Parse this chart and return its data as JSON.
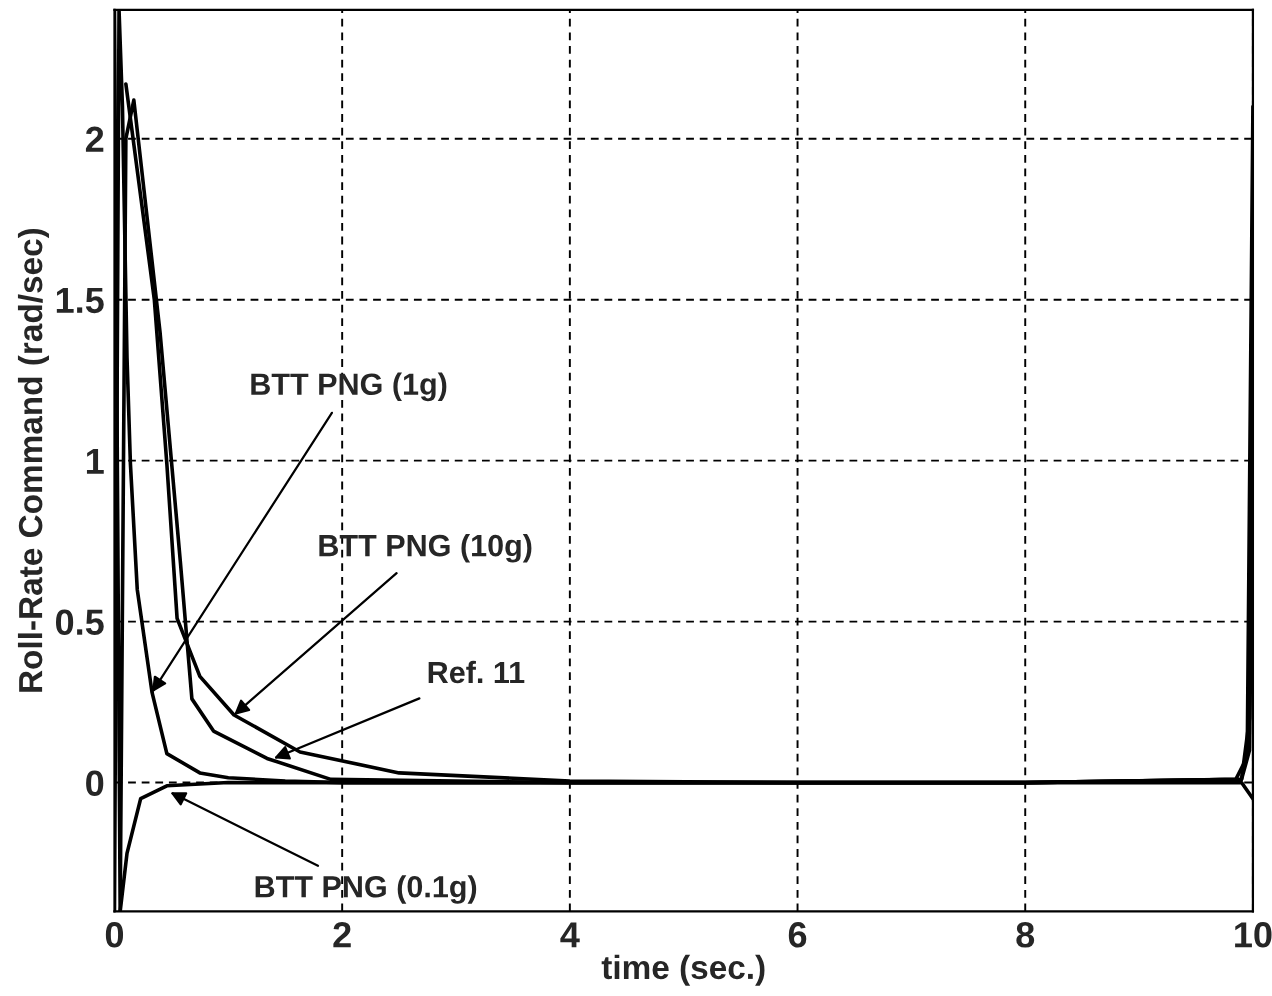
{
  "chart_data": {
    "type": "line",
    "xlabel": "time (sec.)",
    "ylabel": "Roll-Rate Command (rad/sec)",
    "xlim": [
      0,
      10
    ],
    "ylim": [
      -0.4,
      2.4
    ],
    "xticks": [
      0,
      2,
      4,
      6,
      8,
      10
    ],
    "yticks": [
      0,
      0.5,
      1,
      1.5,
      2
    ],
    "grid": true,
    "line_style": "solid",
    "series": [
      {
        "color": "#000000",
        "x": [
          0,
          0.04,
          0.07,
          0.11,
          0.14,
          0.2,
          0.33,
          0.46,
          0.75,
          1,
          1.5,
          2,
          4,
          6,
          8,
          9.9,
          9.97,
          10
        ],
        "values": [
          -0.4,
          2.4,
          2.1,
          1.32,
          0.99,
          0.6,
          0.28,
          0.09,
          0.03,
          0.015,
          0.005,
          0,
          0,
          0,
          0,
          0.01,
          0.1,
          1.0
        ]
      },
      {
        "color": "#000000",
        "x": [
          0,
          0.05,
          0.1,
          0.17,
          0.4,
          0.58,
          0.68,
          0.87,
          1.34,
          1.9,
          3,
          4,
          6,
          8,
          9.9,
          9.97,
          10
        ],
        "values": [
          2.4,
          -0.4,
          2.0,
          2.12,
          1.4,
          0.68,
          0.26,
          0.16,
          0.075,
          0.01,
          0.005,
          0,
          0,
          0,
          0.01,
          0.2,
          1.6
        ]
      },
      {
        "color": "#000000",
        "x": [
          0.1,
          0.35,
          0.46,
          0.55,
          0.75,
          1.05,
          1.63,
          2.5,
          4,
          6,
          8,
          9.85,
          9.95,
          10
        ],
        "values": [
          2.17,
          1.5,
          0.99,
          0.51,
          0.33,
          0.21,
          0.095,
          0.03,
          0.005,
          0,
          0,
          0.01,
          0.08,
          2.1
        ]
      },
      {
        "color": "#000000",
        "x": [
          0.05,
          0.11,
          0.23,
          0.46,
          1,
          2,
          4,
          6,
          8,
          9.9,
          10
        ],
        "values": [
          -0.4,
          -0.22,
          -0.05,
          -0.01,
          0,
          0,
          0,
          0,
          0,
          0,
          -0.05
        ]
      }
    ],
    "annotations": [
      {
        "text": "BTT PNG (1g)",
        "x": 0.33,
        "y": 0.28
      },
      {
        "text": "BTT PNG (10g)",
        "x": 1.05,
        "y": 0.21
      },
      {
        "text": "Ref. 11",
        "x": 1.4,
        "y": 0.075
      },
      {
        "text": "BTT PNG (0.1g)",
        "x": 0.49,
        "y": -0.03
      }
    ]
  }
}
